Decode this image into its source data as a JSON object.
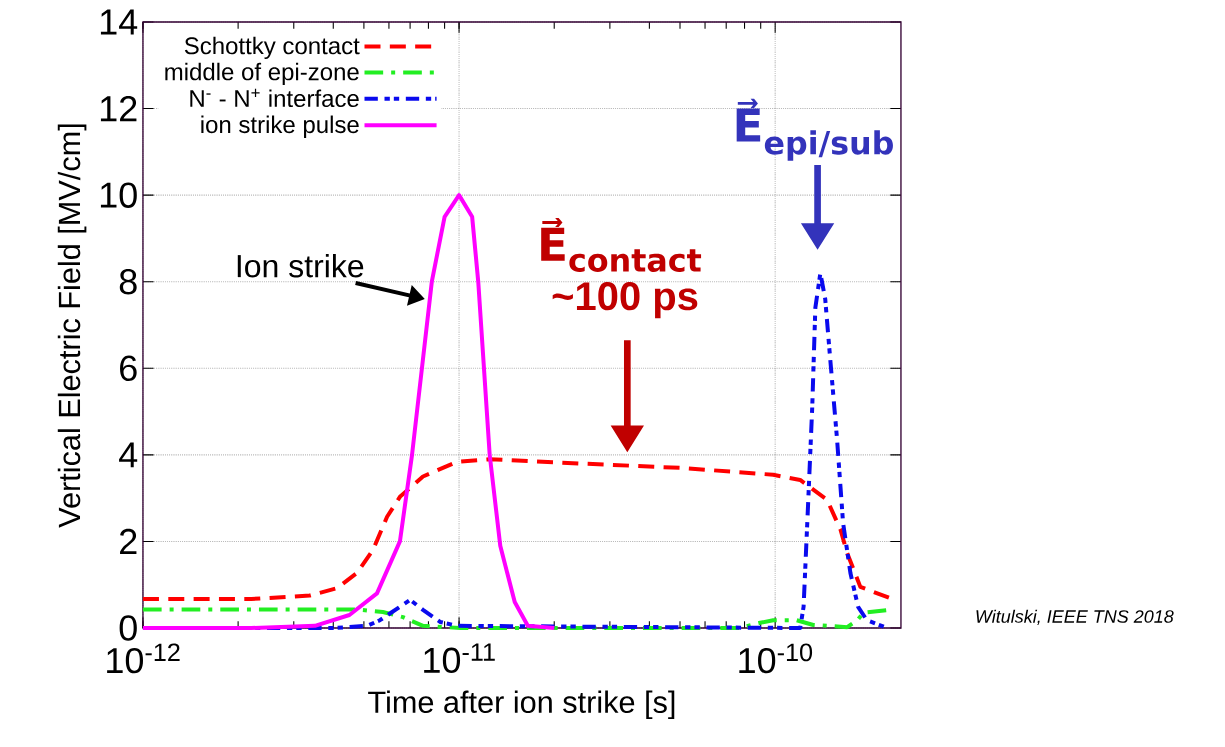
{
  "chart_data": {
    "type": "line",
    "xlabel": "Time after ion strike [s]",
    "ylabel": "Vertical Electric Field [MV/cm]",
    "log": "x",
    "grid": true,
    "legend": "top left",
    "xlim": [
      1e-12,
      2.5e-10
    ],
    "ylim": [
      0,
      14
    ],
    "xticks": [
      {
        "value": 1e-12,
        "label": "10$^{-12}$"
      },
      {
        "value": 1e-11,
        "label": "10$^{-11}$"
      },
      {
        "value": 1e-10,
        "label": "10$^{-10}$"
      }
    ],
    "yticks": [
      0,
      2,
      4,
      6,
      8,
      10,
      12,
      14
    ],
    "series": [
      {
        "name": "Schottky contact",
        "color": "#ff0000",
        "line_style": "dashed",
        "x": [
          1e-12,
          2.2e-12,
          3.37e-12,
          4.11e-12,
          4.75e-12,
          5.34e-12,
          5.92e-12,
          6.5e-12,
          7.69e-12,
          9.86e-12,
          1.25e-11,
          2.42e-11,
          5e-11,
          9.86e-11,
          1.2e-10,
          1.46e-10,
          1.61e-10,
          1.69e-10,
          1.86e-10,
          2.31e-10
        ],
        "values": [
          0.67,
          0.67,
          0.75,
          0.92,
          1.27,
          1.8,
          2.57,
          3.03,
          3.5,
          3.84,
          3.9,
          3.8,
          3.7,
          3.54,
          3.42,
          2.96,
          2.27,
          1.73,
          0.95,
          0.69
        ]
      },
      {
        "name": "middle of epi-zone",
        "color": "#22ee22",
        "line_style": "dashed",
        "x": [
          1e-12,
          4.75e-12,
          5.74e-12,
          6.65e-12,
          7.69e-12,
          1.01e-11,
          7.74e-11,
          8.97e-11,
          9.86e-11,
          1.17e-10,
          1.32e-10,
          1.69e-10,
          1.82e-10,
          1.9e-10,
          2.31e-10
        ],
        "values": [
          0.43,
          0.43,
          0.37,
          0.25,
          0.05,
          0,
          0,
          0.12,
          0.18,
          0.18,
          0.07,
          0.02,
          0.18,
          0.35,
          0.42
        ]
      },
      {
        "name": "N$^{-}$ - N$^{+}$ interface",
        "color": "#0a0aee",
        "line_style": "dashed",
        "x": [
          1e-12,
          4e-12,
          5.12e-12,
          5.62e-12,
          7e-12,
          7.69e-12,
          8.71e-12,
          9.86e-12,
          1.2e-10,
          1.23e-10,
          1.27e-10,
          1.31e-10,
          1.34e-10,
          1.39e-10,
          1.44e-10,
          1.49e-10,
          1.57e-10,
          1.64e-10,
          1.73e-10,
          1.83e-10,
          1.95e-10,
          2.26e-10
        ],
        "values": [
          0,
          0,
          0.05,
          0.18,
          0.65,
          0.42,
          0.14,
          0.05,
          0,
          0.49,
          2.8,
          5.1,
          7.4,
          8.2,
          7.6,
          6.3,
          4.35,
          2.43,
          1.27,
          0.49,
          0.18,
          0
        ]
      },
      {
        "name": "ion strike pulse",
        "color": "#ff00ff",
        "line_style": "solid",
        "x": [
          1e-12,
          2.2e-12,
          3.5e-12,
          4.5e-12,
          5.5e-12,
          6.5e-12,
          7.1e-12,
          8.2e-12,
          9e-12,
          1e-11,
          1.1e-11,
          1.15e-11,
          1.25e-11,
          1.35e-11,
          1.5e-11,
          1.65e-11,
          2e-11
        ],
        "values": [
          0,
          0,
          0.05,
          0.3,
          0.8,
          2,
          4,
          8,
          9.5,
          10,
          9.5,
          8,
          4,
          1.9,
          0.6,
          0.05,
          0
        ]
      }
    ],
    "annotations": [
      {
        "text": "Ion strike",
        "x": 7.8e-12,
        "y": 7.6
      },
      "E⃗$_{contact}$",
      "~100 ps",
      "E⃗$_{epi/sub}$",
      "Witulski, IEEE TNS 2018"
    ]
  }
}
